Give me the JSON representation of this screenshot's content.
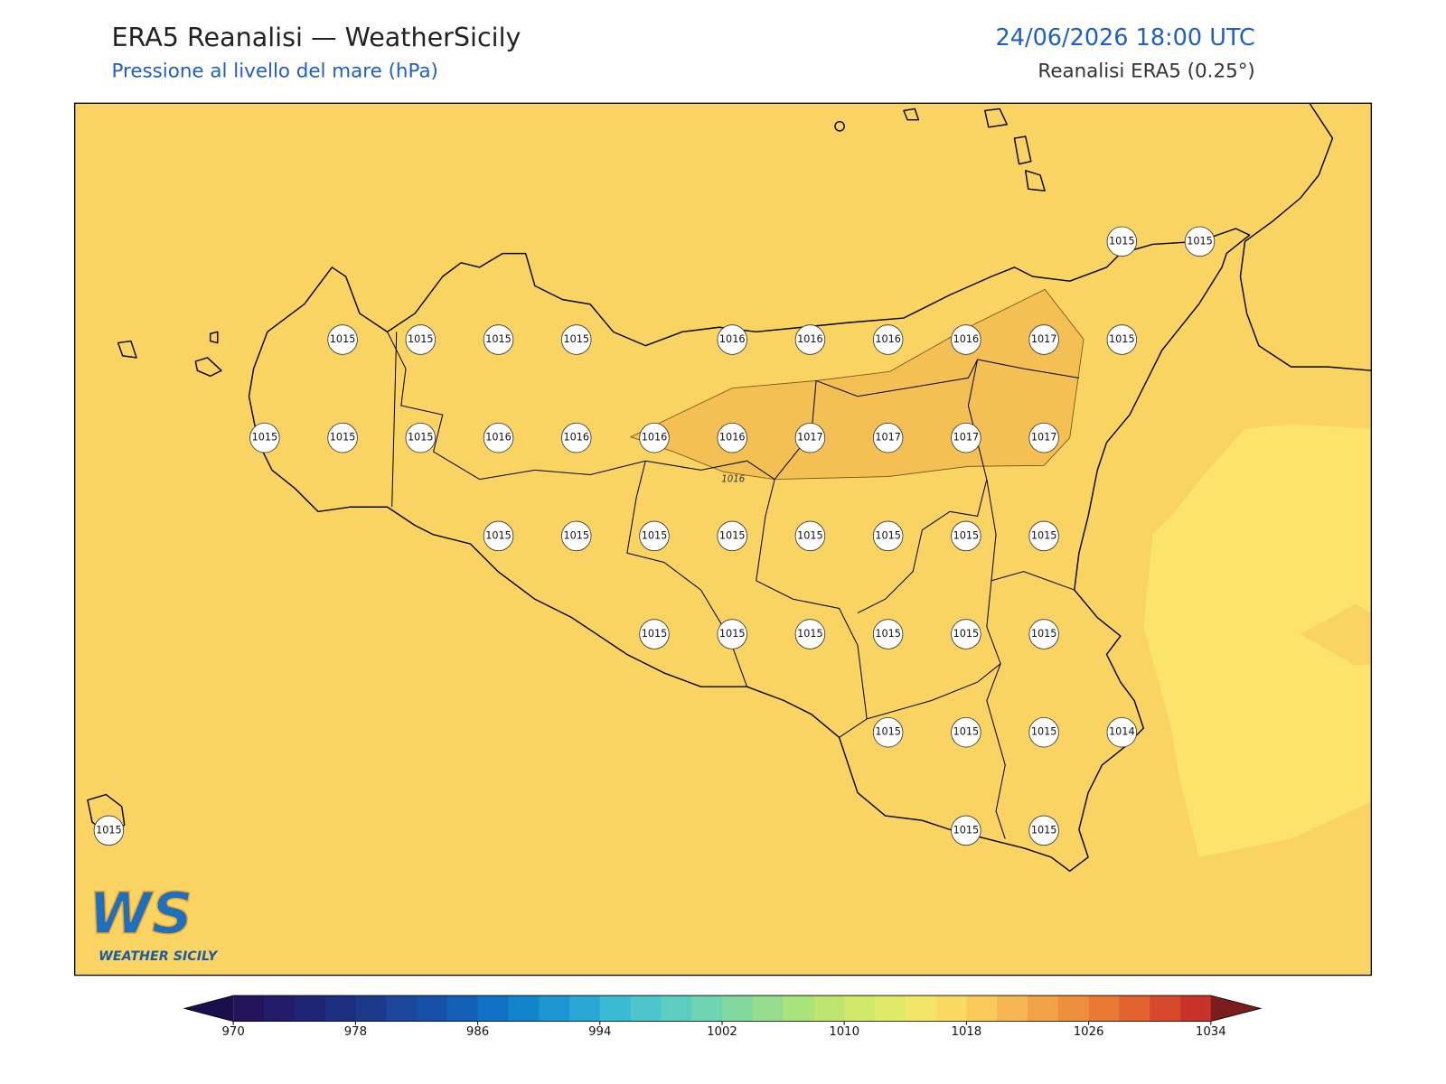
{
  "header": {
    "title": "ERA5 Reanalisi — WeatherSicily",
    "subtitle": "Pressione al livello del mare (hPa)",
    "datetime": "24/06/2026 18:00 UTC",
    "source": "Reanalisi ERA5 (0.25°)"
  },
  "map": {
    "contour_label": "1016",
    "station_grid": [
      [
        null,
        null,
        null,
        null,
        null,
        null,
        null,
        null,
        null,
        null,
        null,
        null,
        null,
        1015,
        1015
      ],
      [
        null,
        null,
        null,
        1015,
        1015,
        1015,
        1015,
        null,
        1016,
        1016,
        1016,
        1016,
        1017,
        1015,
        null
      ],
      [
        null,
        null,
        1015,
        1015,
        1015,
        1016,
        1016,
        1016,
        1016,
        1017,
        1017,
        1017,
        1017,
        null,
        null
      ],
      [
        null,
        null,
        null,
        null,
        null,
        1015,
        1015,
        1015,
        1015,
        1015,
        1015,
        1015,
        1015,
        null,
        null
      ],
      [
        null,
        null,
        null,
        null,
        null,
        null,
        null,
        1015,
        1015,
        1015,
        1015,
        1015,
        1015,
        null,
        null
      ],
      [
        null,
        null,
        null,
        null,
        null,
        null,
        null,
        null,
        null,
        null,
        1015,
        1015,
        1015,
        1014,
        null
      ],
      [
        1015,
        null,
        null,
        null,
        null,
        null,
        null,
        null,
        null,
        null,
        null,
        1015,
        1015,
        null,
        null
      ]
    ]
  },
  "colorbar": {
    "ticks": [
      970,
      978,
      986,
      994,
      1002,
      1010,
      1018,
      1026,
      1034
    ],
    "colors": [
      "#23145b",
      "#221a6a",
      "#1f2474",
      "#1e2e80",
      "#1c3a8c",
      "#1b469b",
      "#1650a8",
      "#1260b5",
      "#0f72c4",
      "#1184cb",
      "#1d96d1",
      "#2aa8d5",
      "#3abbd4",
      "#4cc6cc",
      "#5ccdc0",
      "#6ed4b1",
      "#82d9a0",
      "#96de8e",
      "#aae27c",
      "#bde56f",
      "#cfe86a",
      "#e0ea69",
      "#f1e66a",
      "#fada64",
      "#f9c95a",
      "#f6b651",
      "#f2a347",
      "#ee8f3e",
      "#e97a36",
      "#e2632f",
      "#d64a2b",
      "#c83329"
    ],
    "under_color": "#1a0f4a",
    "over_color": "#7a1c1c"
  },
  "logo": {
    "mark": "WS",
    "name": "WEATHER SICILY"
  }
}
